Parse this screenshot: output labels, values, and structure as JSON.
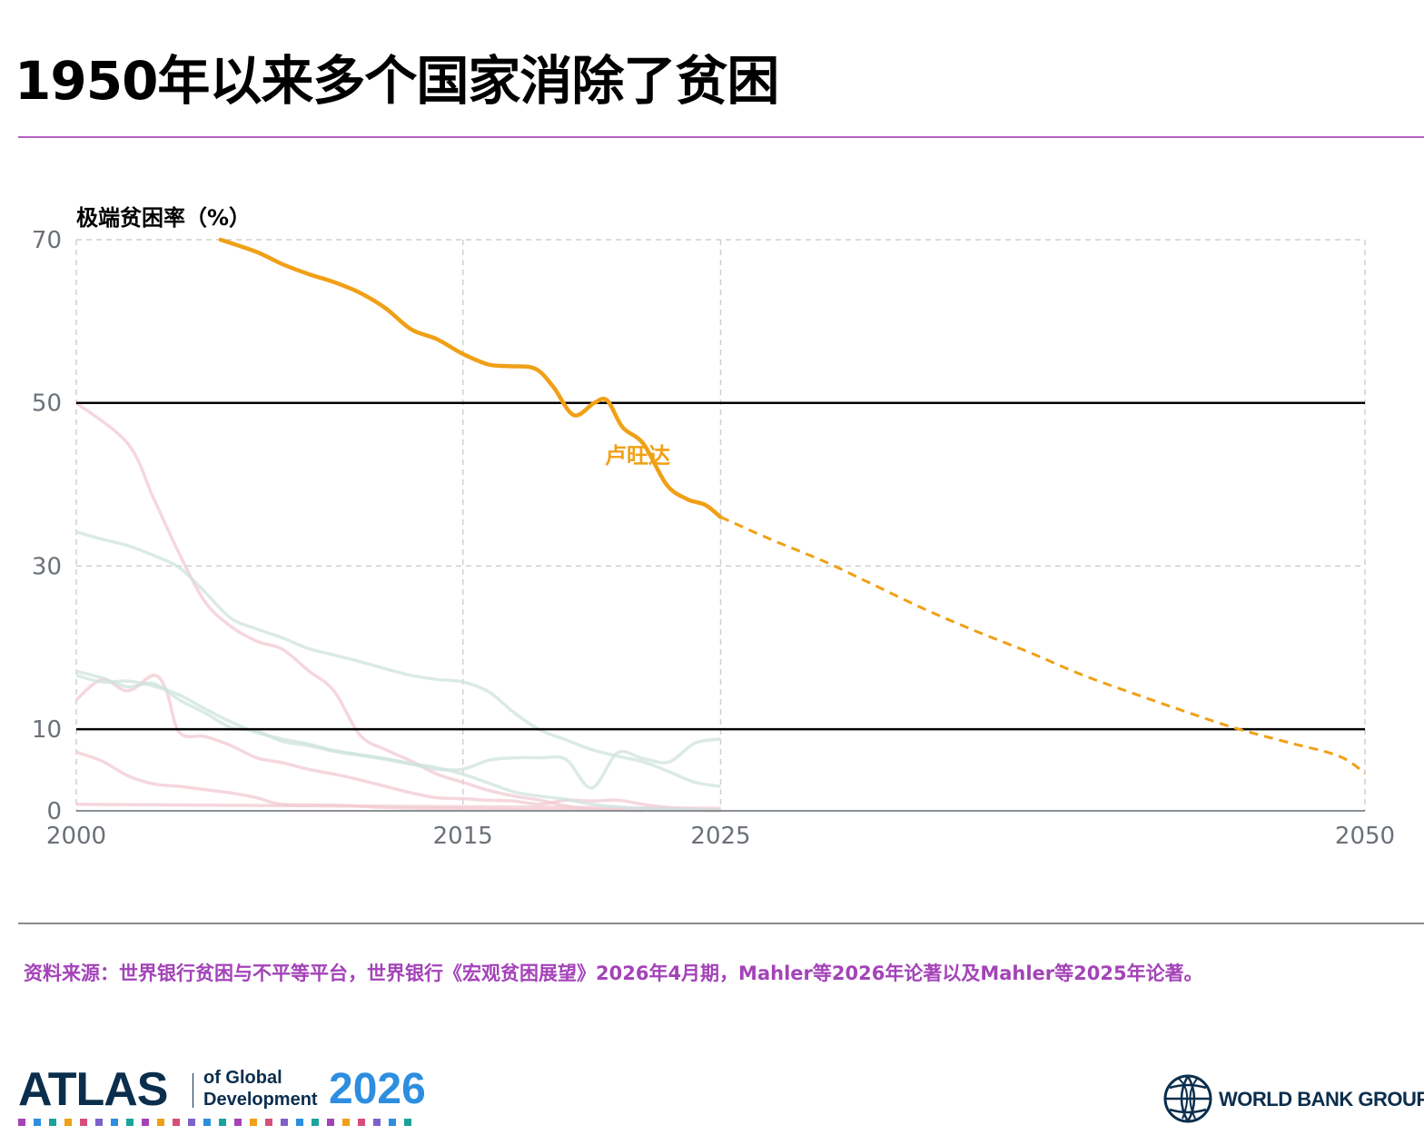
{
  "header": {
    "title": "1950年以来多个国家消除了贫困"
  },
  "colors": {
    "highlight": "#f0a016",
    "accent_rule": "#b65fc1",
    "source_text": "#a443b8",
    "background_pink": "#f2c9d2",
    "background_teal": "#cfe3df"
  },
  "chart_data": {
    "type": "line",
    "ylabel": "极端贫困率（%）",
    "xlabel": "",
    "xlim": [
      2000,
      2050
    ],
    "ylim": [
      0,
      70
    ],
    "x_ticks": [
      "2000",
      "2015",
      "2025",
      "2050"
    ],
    "y_ticks": [
      "0",
      "10",
      "30",
      "50",
      "70"
    ],
    "vertical_gridlines": [
      2000,
      2015,
      2025,
      2050
    ],
    "horizontal_gridlines": [
      30,
      70
    ],
    "reference_lines": [
      10,
      50
    ],
    "highlight_series": {
      "name": "卢旺达",
      "color": "#f0a016",
      "observed": [
        [
          2005.6,
          70
        ],
        [
          2007,
          68.5
        ],
        [
          2008,
          67
        ],
        [
          2009,
          65.8
        ],
        [
          2010,
          64.8
        ],
        [
          2011,
          63.5
        ],
        [
          2012,
          61.6
        ],
        [
          2013,
          59
        ],
        [
          2014,
          57.8
        ],
        [
          2015,
          56
        ],
        [
          2016,
          54.7
        ],
        [
          2016.8,
          54.5
        ],
        [
          2017.8,
          54.2
        ],
        [
          2018.5,
          52
        ],
        [
          2019.3,
          48.5
        ],
        [
          2020.1,
          50
        ],
        [
          2020.6,
          50.3
        ],
        [
          2021.2,
          47
        ],
        [
          2022,
          45
        ],
        [
          2022.9,
          40
        ],
        [
          2023.7,
          38.2
        ],
        [
          2024.4,
          37.5
        ],
        [
          2025,
          36
        ]
      ],
      "projected": [
        [
          2025,
          36
        ],
        [
          2027,
          33.2
        ],
        [
          2029,
          30.6
        ],
        [
          2031,
          27.6
        ],
        [
          2033,
          24.6
        ],
        [
          2035,
          21.9
        ],
        [
          2037,
          19.4
        ],
        [
          2039,
          16.7
        ],
        [
          2041,
          14.4
        ],
        [
          2043,
          12.2
        ],
        [
          2045,
          10.1
        ],
        [
          2047,
          8.4
        ],
        [
          2049,
          6.7
        ],
        [
          2050,
          4.6
        ]
      ]
    },
    "background_series": [
      {
        "color": "#f2c9d2",
        "points": [
          [
            2000,
            50
          ],
          [
            2002,
            45
          ],
          [
            2003,
            38.3
          ],
          [
            2004,
            31.5
          ],
          [
            2005,
            25.6
          ],
          [
            2006,
            22.6
          ],
          [
            2007,
            20.8
          ],
          [
            2008,
            19.8
          ],
          [
            2009,
            17.2
          ],
          [
            2010,
            14.7
          ],
          [
            2011,
            9.3
          ],
          [
            2012,
            7.5
          ],
          [
            2013,
            6.1
          ],
          [
            2014,
            4.5
          ],
          [
            2015,
            3.5
          ],
          [
            2016,
            2.5
          ],
          [
            2017,
            1.8
          ],
          [
            2018,
            1.3
          ],
          [
            2019,
            0.6
          ],
          [
            2020,
            0.2
          ],
          [
            2021,
            0.1
          ],
          [
            2022,
            0
          ]
        ]
      },
      {
        "color": "#f2c9d2",
        "points": [
          [
            2000,
            13.6
          ],
          [
            2001,
            16.1
          ],
          [
            2002,
            14.7
          ],
          [
            2003,
            16.6
          ],
          [
            2003.5,
            14.7
          ],
          [
            2004,
            9.6
          ],
          [
            2005,
            9.1
          ],
          [
            2006,
            8
          ],
          [
            2007,
            6.5
          ],
          [
            2008,
            5.9
          ],
          [
            2009,
            5.1
          ],
          [
            2010,
            4.5
          ],
          [
            2011,
            3.8
          ],
          [
            2012,
            3
          ],
          [
            2013,
            2.2
          ],
          [
            2014,
            1.6
          ],
          [
            2015,
            1.5
          ],
          [
            2016,
            1.3
          ],
          [
            2017,
            1.2
          ],
          [
            2018,
            0.8
          ],
          [
            2019,
            1.3
          ],
          [
            2020,
            1.2
          ],
          [
            2021,
            1.3
          ],
          [
            2022,
            0.8
          ],
          [
            2023,
            0.4
          ],
          [
            2024,
            0.2
          ],
          [
            2025,
            0.1
          ]
        ]
      },
      {
        "color": "#f2c9d2",
        "points": [
          [
            2000,
            7.2
          ],
          [
            2001,
            6.1
          ],
          [
            2002,
            4.3
          ],
          [
            2003,
            3.3
          ],
          [
            2004,
            3
          ],
          [
            2005,
            2.6
          ],
          [
            2006,
            2.2
          ],
          [
            2007,
            1.6
          ],
          [
            2008,
            0.8
          ],
          [
            2010,
            0.7
          ],
          [
            2012,
            0.4
          ],
          [
            2014,
            0.3
          ],
          [
            2016,
            0.2
          ],
          [
            2018,
            0.1
          ],
          [
            2020,
            0.1
          ],
          [
            2025,
            0
          ]
        ]
      },
      {
        "color": "#f2c9d2",
        "points": [
          [
            2000,
            0.8
          ],
          [
            2005,
            0.7
          ],
          [
            2010,
            0.6
          ],
          [
            2015,
            0.5
          ],
          [
            2020,
            0.4
          ],
          [
            2025,
            0.3
          ]
        ]
      },
      {
        "color": "#cfe3df",
        "points": [
          [
            2000,
            34.2
          ],
          [
            2001,
            33.3
          ],
          [
            2002,
            32.5
          ],
          [
            2003,
            31.3
          ],
          [
            2004,
            29.8
          ],
          [
            2005,
            26.8
          ],
          [
            2006,
            23.6
          ],
          [
            2007,
            22.3
          ],
          [
            2008,
            21.2
          ],
          [
            2009,
            19.9
          ],
          [
            2010,
            19.1
          ],
          [
            2011,
            18.3
          ],
          [
            2012,
            17.4
          ],
          [
            2013,
            16.6
          ],
          [
            2014,
            16.1
          ],
          [
            2015,
            15.8
          ],
          [
            2016,
            14.6
          ],
          [
            2017,
            12
          ],
          [
            2018,
            9.9
          ],
          [
            2019,
            8.7
          ],
          [
            2020,
            7.5
          ],
          [
            2021,
            6.7
          ],
          [
            2022,
            6
          ],
          [
            2023,
            4.8
          ],
          [
            2024,
            3.5
          ],
          [
            2025,
            3
          ]
        ]
      },
      {
        "color": "#cfe3df",
        "points": [
          [
            2000,
            17.1
          ],
          [
            2001,
            16.3
          ],
          [
            2002,
            15.2
          ],
          [
            2003,
            15.6
          ],
          [
            2004,
            13.6
          ],
          [
            2005,
            12
          ],
          [
            2006,
            10.2
          ],
          [
            2007,
            9.8
          ],
          [
            2008,
            8.5
          ],
          [
            2009,
            8
          ],
          [
            2010,
            7.3
          ],
          [
            2011,
            6.8
          ],
          [
            2012,
            6.3
          ],
          [
            2013,
            5.7
          ],
          [
            2014,
            5.1
          ],
          [
            2015,
            5.1
          ],
          [
            2016,
            6.2
          ],
          [
            2017,
            6.5
          ],
          [
            2018,
            6.5
          ],
          [
            2019,
            6.3
          ],
          [
            2020,
            2.8
          ],
          [
            2021,
            7.1
          ],
          [
            2022,
            6.4
          ],
          [
            2023,
            6
          ],
          [
            2024,
            8.3
          ],
          [
            2025,
            8.8
          ]
        ]
      },
      {
        "color": "#cfe3df",
        "points": [
          [
            2000,
            16.6
          ],
          [
            2001,
            15.8
          ],
          [
            2002,
            15.9
          ],
          [
            2003,
            15.3
          ],
          [
            2004,
            14.2
          ],
          [
            2005,
            12.5
          ],
          [
            2006,
            10.9
          ],
          [
            2007,
            9.6
          ],
          [
            2008,
            8.8
          ],
          [
            2009,
            8.2
          ],
          [
            2010,
            7.4
          ],
          [
            2011,
            6.9
          ],
          [
            2012,
            6.4
          ],
          [
            2013,
            5.8
          ],
          [
            2014,
            5.3
          ],
          [
            2015,
            4.5
          ],
          [
            2016,
            3.4
          ],
          [
            2017,
            2.3
          ],
          [
            2018,
            1.8
          ],
          [
            2019,
            1.4
          ],
          [
            2020,
            0.8
          ],
          [
            2021,
            0.5
          ],
          [
            2022,
            0.3
          ],
          [
            2025,
            0.1
          ]
        ]
      }
    ]
  },
  "footer": {
    "source": "资料来源：世界银行贫困与不平等平台，世界银行《宏观贫困展望》2026年4月期，Mahler等2026年论著以及Mahler等2025年论著。",
    "atlas_word": "ATLAS",
    "atlas_of": "of Global",
    "atlas_development": "Development",
    "atlas_year": "2026",
    "wbg_name": "WORLD BANK GROUP"
  }
}
